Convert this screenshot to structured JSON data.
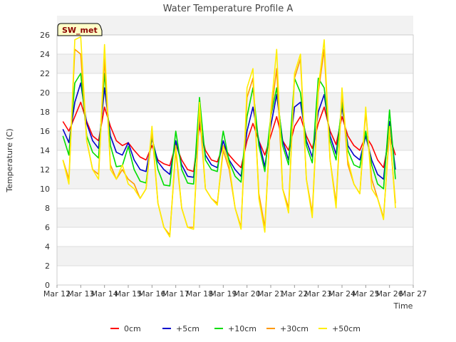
{
  "chart_data": {
    "type": "line",
    "title": "Water Temperature Profile A",
    "xlabel": "Time",
    "ylabel": "Temperature (C)",
    "station_tag": "SW_met",
    "ylim": [
      0,
      26
    ],
    "yticks": [
      0,
      2,
      4,
      6,
      8,
      10,
      12,
      14,
      16,
      18,
      20,
      22,
      24,
      26
    ],
    "xlim": [
      0,
      15
    ],
    "xticks": [
      {
        "x": 0,
        "label": "Mar 12"
      },
      {
        "x": 1,
        "label": "Mar 13"
      },
      {
        "x": 2,
        "label": "Mar 14"
      },
      {
        "x": 3,
        "label": "Mar 15"
      },
      {
        "x": 4,
        "label": "Mar 16"
      },
      {
        "x": 5,
        "label": "Mar 17"
      },
      {
        "x": 6,
        "label": "Mar 18"
      },
      {
        "x": 7,
        "label": "Mar 19"
      },
      {
        "x": 8,
        "label": "Mar 20"
      },
      {
        "x": 9,
        "label": "Mar 21"
      },
      {
        "x": 10,
        "label": "Mar 22"
      },
      {
        "x": 11,
        "label": "Mar 23"
      },
      {
        "x": 12,
        "label": "Mar 24"
      },
      {
        "x": 13,
        "label": "Mar 25"
      },
      {
        "x": 14,
        "label": "Mar 26"
      },
      {
        "x": 15,
        "label": "Mar 27"
      }
    ],
    "grid": true,
    "legend_position": "bottom",
    "series": [
      {
        "name": "0cm",
        "color": "#ff0000",
        "x": [
          0.25,
          0.5,
          0.75,
          1.0,
          1.25,
          1.5,
          1.75,
          2.0,
          2.25,
          2.5,
          2.75,
          3.0,
          3.25,
          3.5,
          3.75,
          4.0,
          4.25,
          4.5,
          4.75,
          5.0,
          5.25,
          5.5,
          5.75,
          6.0,
          6.25,
          6.5,
          6.75,
          7.0,
          7.25,
          7.5,
          7.75,
          8.0,
          8.25,
          8.5,
          8.75,
          9.0,
          9.25,
          9.5,
          9.75,
          10.0,
          10.25,
          10.5,
          10.75,
          11.0,
          11.25,
          11.5,
          11.75,
          12.0,
          12.25,
          12.5,
          12.75,
          13.0,
          13.25,
          13.5,
          13.75,
          14.0,
          14.25
        ],
        "y": [
          17.0,
          16.0,
          17.5,
          19.0,
          17.0,
          15.5,
          15.0,
          18.5,
          16.5,
          15.0,
          14.5,
          14.8,
          14.0,
          13.3,
          13.0,
          14.5,
          13.0,
          12.6,
          12.4,
          14.6,
          13.0,
          12.0,
          11.8,
          16.5,
          14.0,
          13.0,
          12.8,
          14.5,
          13.5,
          12.8,
          12.2,
          15.0,
          16.8,
          15.0,
          13.5,
          15.5,
          17.5,
          15.0,
          14.0,
          16.5,
          17.5,
          15.5,
          14.2,
          16.8,
          18.5,
          16.0,
          14.6,
          17.5,
          15.5,
          14.5,
          14.0,
          15.5,
          14.5,
          13.0,
          12.2,
          15.5,
          13.5
        ]
      },
      {
        "name": "+5cm",
        "color": "#0000cc",
        "x": [
          0.25,
          0.5,
          0.75,
          1.0,
          1.25,
          1.5,
          1.75,
          2.0,
          2.25,
          2.5,
          2.75,
          3.0,
          3.25,
          3.5,
          3.75,
          4.0,
          4.25,
          4.5,
          4.75,
          5.0,
          5.25,
          5.5,
          5.75,
          6.0,
          6.25,
          6.5,
          6.75,
          7.0,
          7.25,
          7.5,
          7.75,
          8.0,
          8.25,
          8.5,
          8.75,
          9.0,
          9.25,
          9.5,
          9.75,
          10.0,
          10.25,
          10.5,
          10.75,
          11.0,
          11.25,
          11.5,
          11.75,
          12.0,
          12.25,
          12.5,
          12.75,
          13.0,
          13.25,
          13.5,
          13.75,
          14.0,
          14.25
        ],
        "y": [
          16.2,
          14.8,
          19.0,
          21.0,
          16.8,
          15.0,
          14.2,
          20.5,
          15.5,
          13.8,
          13.5,
          14.8,
          13.0,
          12.0,
          11.8,
          15.2,
          12.8,
          12.0,
          11.5,
          15.0,
          12.5,
          11.3,
          11.2,
          17.0,
          13.5,
          12.5,
          12.2,
          15.0,
          13.0,
          12.0,
          11.3,
          16.0,
          18.5,
          15.0,
          12.3,
          16.5,
          19.8,
          15.0,
          13.0,
          18.5,
          19.0,
          15.0,
          13.3,
          18.0,
          19.8,
          15.5,
          13.6,
          18.5,
          14.5,
          13.5,
          13.0,
          15.5,
          13.0,
          11.5,
          11.0,
          17.0,
          12.0
        ]
      },
      {
        "name": "+10cm",
        "color": "#00dd00",
        "x": [
          0.25,
          0.5,
          0.75,
          1.0,
          1.25,
          1.5,
          1.75,
          2.0,
          2.25,
          2.5,
          2.75,
          3.0,
          3.25,
          3.5,
          3.75,
          4.0,
          4.25,
          4.5,
          4.75,
          5.0,
          5.25,
          5.5,
          5.75,
          6.0,
          6.25,
          6.5,
          6.75,
          7.0,
          7.25,
          7.5,
          7.75,
          8.0,
          8.25,
          8.5,
          8.75,
          9.0,
          9.25,
          9.5,
          9.75,
          10.0,
          10.25,
          10.5,
          10.75,
          11.0,
          11.25,
          11.5,
          11.75,
          12.0,
          12.25,
          12.5,
          12.75,
          13.0,
          13.25,
          13.5,
          13.75,
          14.0,
          14.25
        ],
        "y": [
          15.5,
          13.5,
          21.0,
          22.0,
          15.5,
          13.8,
          13.2,
          22.0,
          14.5,
          12.3,
          12.4,
          14.4,
          12.0,
          10.8,
          10.6,
          15.5,
          12.0,
          10.4,
          10.3,
          16.0,
          12.0,
          10.6,
          10.5,
          19.5,
          13.0,
          12.0,
          11.8,
          16.0,
          12.8,
          11.3,
          10.7,
          17.5,
          20.5,
          14.5,
          11.8,
          17.5,
          20.5,
          14.5,
          12.5,
          21.5,
          20.0,
          14.5,
          12.7,
          21.5,
          20.5,
          15.0,
          13.0,
          19.0,
          14.0,
          12.5,
          12.2,
          16.0,
          12.5,
          10.5,
          10.0,
          18.2,
          11.0
        ]
      },
      {
        "name": "+30cm",
        "color": "#ff9900",
        "x": [
          0.25,
          0.5,
          0.75,
          1.0,
          1.25,
          1.5,
          1.75,
          2.0,
          2.25,
          2.5,
          2.75,
          3.0,
          3.25,
          3.5,
          3.75,
          4.0,
          4.25,
          4.5,
          4.75,
          5.0,
          5.25,
          5.5,
          5.75,
          6.0,
          6.25,
          6.5,
          6.75,
          7.0,
          7.25,
          7.5,
          7.75,
          8.0,
          8.25,
          8.5,
          8.75,
          9.0,
          9.25,
          9.5,
          9.75,
          10.0,
          10.25,
          10.5,
          10.75,
          11.0,
          11.25,
          11.5,
          11.75,
          12.0,
          12.25,
          12.5,
          12.75,
          13.0,
          13.25,
          13.5,
          13.75,
          14.0,
          14.25
        ],
        "y": [
          13.0,
          11.0,
          24.5,
          24.0,
          15.0,
          12.0,
          11.5,
          23.5,
          12.5,
          11.0,
          12.0,
          11.0,
          10.5,
          9.0,
          10.0,
          16.0,
          8.5,
          6.0,
          5.2,
          14.0,
          8.0,
          6.0,
          6.0,
          18.0,
          10.0,
          9.0,
          8.5,
          14.0,
          12.0,
          8.0,
          6.0,
          19.5,
          21.5,
          9.5,
          6.0,
          17.5,
          22.5,
          10.0,
          8.0,
          21.5,
          23.5,
          11.0,
          7.5,
          20.0,
          24.5,
          13.0,
          8.5,
          20.0,
          12.5,
          10.5,
          9.5,
          18.0,
          11.0,
          9.0,
          7.0,
          16.0,
          8.5
        ]
      },
      {
        "name": "+50cm",
        "color": "#ffee00",
        "x": [
          0.25,
          0.5,
          0.75,
          1.0,
          1.25,
          1.5,
          1.75,
          2.0,
          2.25,
          2.5,
          2.75,
          3.0,
          3.25,
          3.5,
          3.75,
          4.0,
          4.25,
          4.5,
          4.75,
          5.0,
          5.25,
          5.5,
          5.75,
          6.0,
          6.25,
          6.5,
          6.75,
          7.0,
          7.25,
          7.5,
          7.75,
          8.0,
          8.25,
          8.5,
          8.75,
          9.0,
          9.25,
          9.5,
          9.75,
          10.0,
          10.25,
          10.5,
          10.75,
          11.0,
          11.25,
          11.5,
          11.75,
          12.0,
          12.25,
          12.5,
          12.75,
          13.0,
          13.25,
          13.5,
          13.75,
          14.0,
          14.25
        ],
        "y": [
          13.0,
          10.5,
          25.5,
          25.8,
          15.0,
          12.0,
          11.0,
          25.0,
          12.0,
          11.0,
          12.5,
          10.5,
          10.0,
          9.0,
          10.0,
          16.5,
          8.5,
          6.0,
          5.0,
          14.5,
          8.0,
          6.0,
          5.8,
          19.0,
          10.0,
          9.0,
          8.3,
          14.5,
          12.5,
          8.0,
          5.8,
          20.5,
          22.5,
          9.0,
          5.5,
          18.0,
          24.5,
          10.0,
          7.5,
          22.0,
          24.0,
          11.0,
          7.0,
          20.5,
          25.5,
          13.0,
          8.0,
          20.5,
          13.0,
          10.5,
          9.5,
          18.5,
          10.0,
          9.0,
          6.8,
          16.5,
          8.0
        ]
      }
    ]
  }
}
